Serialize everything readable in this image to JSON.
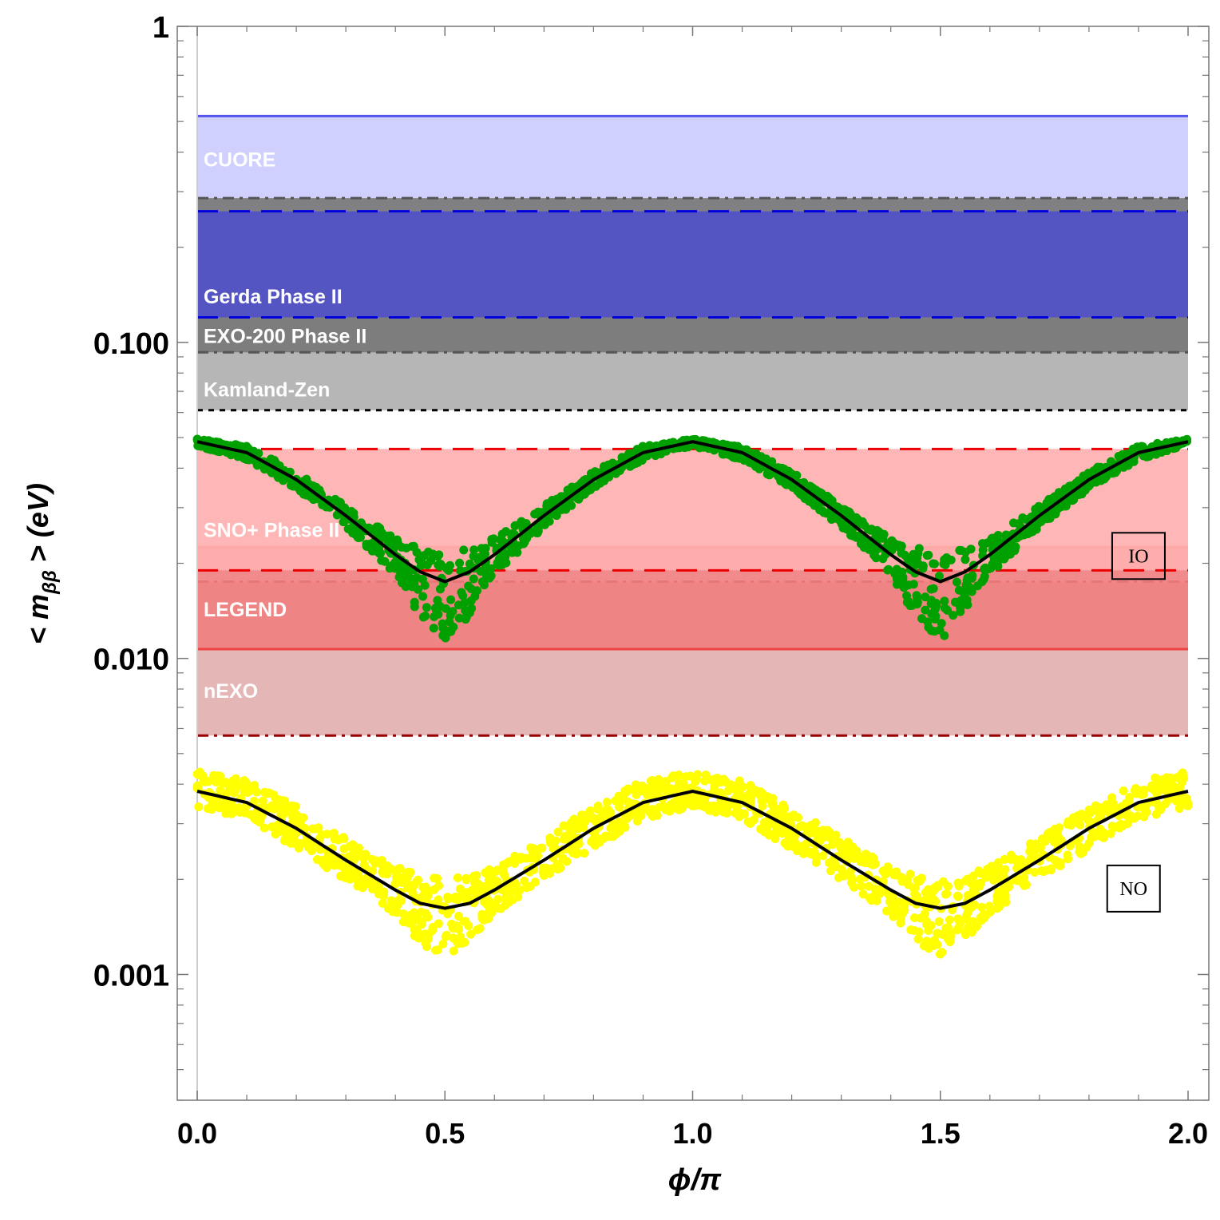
{
  "chart_data": {
    "type": "scatter",
    "title": "",
    "xlabel": "ϕ/π",
    "ylabel_parts": {
      "open": "< ",
      "m": "m",
      "sub": "ββ",
      "close": " > (eV)"
    },
    "xlim": [
      0,
      2
    ],
    "ylim": [
      0.0004,
      1
    ],
    "yscale": "log",
    "x_ticks": [
      {
        "value": 0.0,
        "label": "0.0"
      },
      {
        "value": 0.5,
        "label": "0.5"
      },
      {
        "value": 1.0,
        "label": "1.0"
      },
      {
        "value": 1.5,
        "label": "1.5"
      },
      {
        "value": 2.0,
        "label": "2.0"
      }
    ],
    "y_ticks": [
      {
        "value": 1,
        "label": "1"
      },
      {
        "value": 0.1,
        "label": "0.100"
      },
      {
        "value": 0.01,
        "label": "0.010"
      },
      {
        "value": 0.001,
        "label": "0.001"
      }
    ],
    "bands": [
      {
        "name": "CUORE",
        "low": 0.11,
        "high": 0.52,
        "color": "#ccccff",
        "edge_color": "#5555ee",
        "edge_style": "solid"
      },
      {
        "name": "Kamland-Zen",
        "low": 0.061,
        "high": 0.165,
        "color": "#b0b0b0",
        "edge_color": "#000000",
        "edge_style": "dotted"
      },
      {
        "name": "EXO-200 Phase II",
        "low": 0.093,
        "high": 0.286,
        "color": "#787878",
        "edge_color": "#555555",
        "edge_style": "dashdot"
      },
      {
        "name": "Gerda Phase II",
        "low": 0.12,
        "high": 0.26,
        "color": "#5050c8",
        "edge_color": "#0000dd",
        "edge_style": "dashed"
      },
      {
        "name": "nEXO",
        "low": 0.0057,
        "high": 0.0175,
        "color": "#e3b0b0",
        "edge_color": "#990000",
        "edge_style": "dashdot"
      },
      {
        "name": "LEGEND",
        "low": 0.0107,
        "high": 0.0225,
        "color": "#f08080",
        "edge_color": "#ee4444",
        "edge_style": "solid"
      },
      {
        "name": "SNO+ Phase II",
        "low": 0.019,
        "high": 0.046,
        "color": "#ffb0b0",
        "edge_color": "#ee0000",
        "edge_style": "dashed"
      }
    ],
    "band_labels": [
      {
        "text": "CUORE",
        "y": 0.38,
        "color": "#ffffff"
      },
      {
        "text": "Gerda Phase II",
        "y": 0.14,
        "color": "#ffffff"
      },
      {
        "text": "EXO-200 Phase II",
        "y": 0.105,
        "color": "#ffffff"
      },
      {
        "text": "Kamland-Zen",
        "y": 0.071,
        "color": "#ffffff"
      },
      {
        "text": "SNO+ Phase II",
        "y": 0.0255,
        "color": "#ffffff"
      },
      {
        "text": "LEGEND",
        "y": 0.0143,
        "color": "#ffffff"
      },
      {
        "text": "nEXO",
        "y": 0.0079,
        "color": "#ffffff"
      }
    ],
    "series": [
      {
        "name": "IO",
        "label": "IO",
        "color": "#00a000",
        "curve_color": "#000000",
        "x": [
          0.0,
          0.1,
          0.2,
          0.3,
          0.4,
          0.45,
          0.5,
          0.55,
          0.6,
          0.7,
          0.8,
          0.9,
          1.0,
          1.1,
          1.2,
          1.3,
          1.4,
          1.45,
          1.5,
          1.55,
          1.6,
          1.7,
          1.8,
          1.9,
          2.0
        ],
        "central": [
          0.0485,
          0.0448,
          0.0368,
          0.0283,
          0.0213,
          0.0188,
          0.0175,
          0.0188,
          0.0213,
          0.0283,
          0.0368,
          0.0448,
          0.0485,
          0.0448,
          0.0368,
          0.0283,
          0.0213,
          0.0188,
          0.0175,
          0.0188,
          0.0213,
          0.0283,
          0.0368,
          0.0448,
          0.0485
        ],
        "upper": [
          0.0495,
          0.047,
          0.039,
          0.0305,
          0.024,
          0.0225,
          0.0215,
          0.0225,
          0.024,
          0.0305,
          0.039,
          0.047,
          0.0495,
          0.047,
          0.039,
          0.0305,
          0.024,
          0.0225,
          0.0215,
          0.0225,
          0.024,
          0.0305,
          0.039,
          0.047,
          0.0495
        ],
        "lower": [
          0.047,
          0.0425,
          0.0345,
          0.026,
          0.0185,
          0.0135,
          0.0115,
          0.0135,
          0.0185,
          0.026,
          0.0345,
          0.0425,
          0.047,
          0.0425,
          0.0345,
          0.026,
          0.0185,
          0.0135,
          0.0115,
          0.0135,
          0.0185,
          0.026,
          0.0345,
          0.0425,
          0.047
        ]
      },
      {
        "name": "NO",
        "label": "NO",
        "color": "#ffff00",
        "curve_color": "#000000",
        "x": [
          0.0,
          0.1,
          0.2,
          0.3,
          0.4,
          0.45,
          0.5,
          0.55,
          0.6,
          0.7,
          0.8,
          0.9,
          1.0,
          1.1,
          1.2,
          1.3,
          1.4,
          1.45,
          1.5,
          1.55,
          1.6,
          1.7,
          1.8,
          1.9,
          2.0
        ],
        "central": [
          0.0038,
          0.0035,
          0.0029,
          0.0023,
          0.00185,
          0.00168,
          0.00162,
          0.00168,
          0.00185,
          0.0023,
          0.0029,
          0.0035,
          0.0038,
          0.0035,
          0.0029,
          0.0023,
          0.00185,
          0.00168,
          0.00162,
          0.00168,
          0.00185,
          0.0023,
          0.0029,
          0.0035,
          0.0038
        ],
        "upper": [
          0.0044,
          0.0041,
          0.0034,
          0.0027,
          0.0022,
          0.00205,
          0.002,
          0.00205,
          0.0022,
          0.0027,
          0.0034,
          0.0041,
          0.0044,
          0.0041,
          0.0034,
          0.0027,
          0.0022,
          0.00205,
          0.002,
          0.00205,
          0.0022,
          0.0027,
          0.0034,
          0.0041,
          0.0044
        ],
        "lower": [
          0.0034,
          0.0031,
          0.0025,
          0.002,
          0.00155,
          0.00125,
          0.00115,
          0.00125,
          0.00155,
          0.002,
          0.0025,
          0.0031,
          0.0034,
          0.0031,
          0.0025,
          0.002,
          0.00155,
          0.00125,
          0.00115,
          0.00125,
          0.00155,
          0.002,
          0.0025,
          0.0031,
          0.0034
        ]
      }
    ],
    "annotations": [
      {
        "text": "IO",
        "x": 1.9,
        "y": 0.0211
      },
      {
        "text": "NO",
        "x": 1.89,
        "y": 0.00187
      }
    ]
  }
}
